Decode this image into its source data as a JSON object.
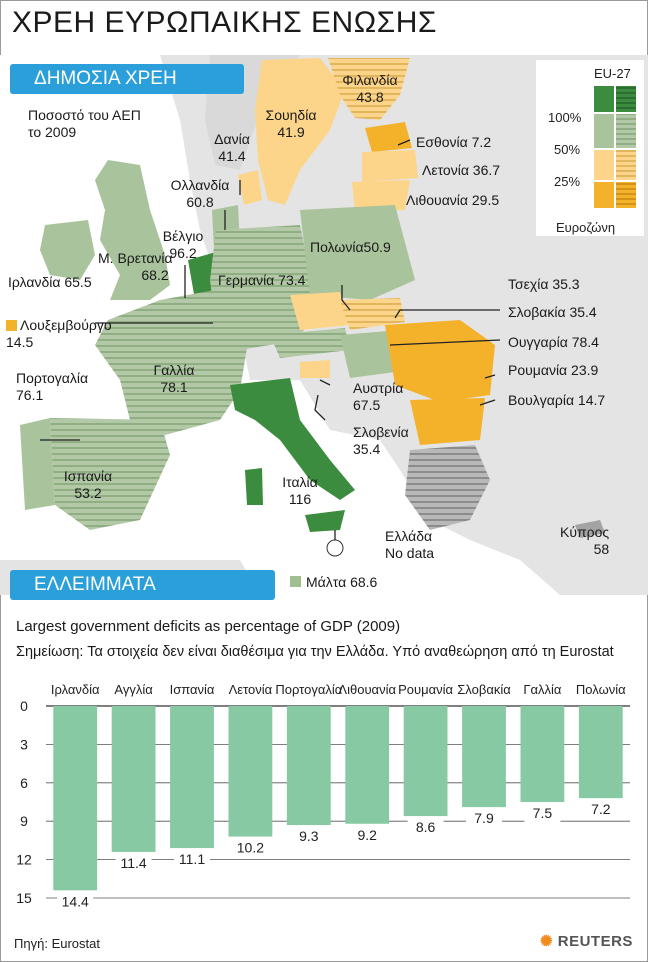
{
  "title": "ΧΡΕΗ ΕΥΡΩΠΑΙΚΗΣ ΕΝΩΣΗΣ",
  "debt_banner": "ΔΗΜΟΣΙΑ ΧΡΕΗ",
  "debt_subtitle_line1": "Ποσοστό του ΑΕΠ",
  "debt_subtitle_line2": "το 2009",
  "deficit_banner": "ΕΛΛΕΙΜΜΑΤΑ",
  "legend": {
    "title": "EU-27",
    "levels": [
      "100%",
      "50%",
      "25%"
    ],
    "eurozone_label": "Ευροζώνη"
  },
  "map_labels": {
    "finland": {
      "name": "Φιλανδία",
      "value": "43.8"
    },
    "sweden": {
      "name": "Σουηδία",
      "value": "41.9"
    },
    "denmark": {
      "name": "Δανία",
      "value": "41.4"
    },
    "netherlands": {
      "name": "Ολλανδία",
      "value": "60.8"
    },
    "belgium": {
      "name": "Βέλγιο",
      "value": "96.2"
    },
    "uk": {
      "name": "Μ. Βρετανία",
      "value": "68.2"
    },
    "ireland": "Ιρλανδία 65.5",
    "luxembourg": {
      "name": "Λουξεμβούργο",
      "value": "14.5"
    },
    "france": {
      "name": "Γαλλία",
      "value": "78.1"
    },
    "portugal": {
      "name": "Πορτογαλία",
      "value": "76.1"
    },
    "spain": {
      "name": "Ισπανία",
      "value": "53.2"
    },
    "germany": "Γερμανία 73.4",
    "poland": "Πολωνία50.9",
    "estonia": "Εσθονία 7.2",
    "latvia": "Λετονία 36.7",
    "lithuania": "Λιθουανία 29.5",
    "czech": "Τσεχία 35.3",
    "slovakia": "Σλοβακία 35.4",
    "hungary": "Ουγγαρία 78.4",
    "romania": "Ρουμανία 23.9",
    "bulgaria": "Βουλγαρία 14.7",
    "austria": {
      "name": "Αυστρία",
      "value": "67.5"
    },
    "slovenia": {
      "name": "Σλοβενία",
      "value": "35.4"
    },
    "italy": {
      "name": "Ιταλία",
      "value": "116"
    },
    "greece": {
      "name": "Ελλάδα",
      "value": "No data"
    },
    "cyprus": {
      "name": "Κύπρος",
      "value": "58"
    },
    "malta": "Μάλτα 68.6"
  },
  "chart_subtitle": "Largest government deficits as percentage of GDP (2009)",
  "chart_note": "Σημείωση: Τα στοιχεία δεν είναι διαθέσιμα για την Ελλάδα. Υπό αναθεώρηση από τη Eurostat",
  "colors": {
    "banner": "#2b9fd9",
    "bar": "#87c9a2",
    "dark_green": "#3c8c40",
    "mid_green": "#a9c39c",
    "light_yellow": "#fcd58a",
    "orange": "#f4b12a",
    "grey": "#a3a3a3"
  },
  "chart_data": {
    "type": "bar",
    "orientation": "inverted-vertical",
    "categories": [
      "Ιρλανδία",
      "Αγγλία",
      "Ισπανία",
      "Λετονία",
      "Πορτογαλία",
      "Λιθουανία",
      "Ρουμανία",
      "Σλοβακία",
      "Γαλλία",
      "Πολωνία"
    ],
    "values": [
      14.4,
      11.4,
      11.1,
      10.2,
      9.3,
      9.2,
      8.6,
      7.9,
      7.5,
      7.2
    ],
    "value_labels": [
      "14.4",
      "11.4",
      "11.1",
      "10.2",
      "9.3",
      "9.2",
      "8.6",
      "7.9",
      "7.5",
      "7.2"
    ],
    "yticks": [
      "0",
      "3",
      "6",
      "9",
      "12",
      "15"
    ],
    "ylim": [
      0,
      15
    ],
    "grid": true
  },
  "source": "Πηγή: Eurostat",
  "brand": "REUTERS"
}
